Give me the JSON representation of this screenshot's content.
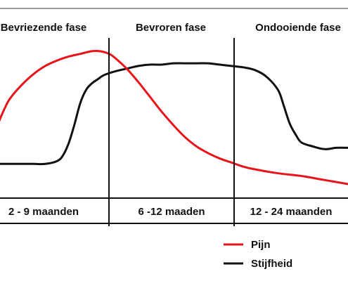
{
  "chart_data": {
    "type": "line",
    "phases": [
      {
        "name": "Bevriezende fase",
        "duration": "2 - 9 maanden"
      },
      {
        "name": "Bevroren fase",
        "duration": "6 -12 maaden"
      },
      {
        "name": "Ondooiende fase",
        "duration": "12 - 24 maanden"
      }
    ],
    "x_range": [
      0,
      3
    ],
    "y_range": [
      0,
      100
    ],
    "series": [
      {
        "name": "Pijn",
        "color": "#e8141c",
        "x": [
          0.0,
          0.05,
          0.1,
          0.2,
          0.3,
          0.4,
          0.5,
          0.6,
          0.7,
          0.8,
          0.87,
          0.95,
          1.0,
          1.1,
          1.2,
          1.3,
          1.4,
          1.5,
          1.6,
          1.7,
          1.8,
          1.9,
          2.0,
          2.1,
          2.2,
          2.4,
          2.6,
          2.8,
          3.0
        ],
        "values": [
          46,
          56,
          64,
          74,
          82,
          88,
          92,
          95,
          97,
          99,
          99,
          97,
          94,
          86,
          76,
          65,
          54,
          44,
          35,
          28,
          23,
          19,
          16,
          13,
          11,
          8,
          6,
          3,
          0
        ]
      },
      {
        "name": "Stijfheid",
        "color": "#111111",
        "x": [
          0.0,
          0.1,
          0.2,
          0.3,
          0.4,
          0.5,
          0.55,
          0.6,
          0.65,
          0.7,
          0.75,
          0.8,
          0.85,
          0.9,
          1.0,
          1.1,
          1.2,
          1.3,
          1.4,
          1.5,
          1.6,
          1.7,
          1.8,
          1.9,
          2.0,
          2.1,
          2.2,
          2.3,
          2.4,
          2.45,
          2.5,
          2.55,
          2.6,
          2.7,
          2.8,
          2.9,
          3.0
        ],
        "values": [
          15,
          15,
          15,
          15,
          15,
          17,
          21,
          30,
          44,
          60,
          70,
          75,
          78,
          81,
          84,
          86,
          88,
          89,
          89,
          90,
          90,
          90,
          90,
          89,
          88,
          87,
          85,
          80,
          70,
          58,
          45,
          37,
          31,
          28,
          26,
          27,
          27
        ]
      }
    ],
    "legend": {
      "placement": "bottom-right",
      "items": [
        {
          "label": "Pijn",
          "color": "#e8141c"
        },
        {
          "label": "Stijfheid",
          "color": "#111111"
        }
      ]
    },
    "grid": false
  }
}
